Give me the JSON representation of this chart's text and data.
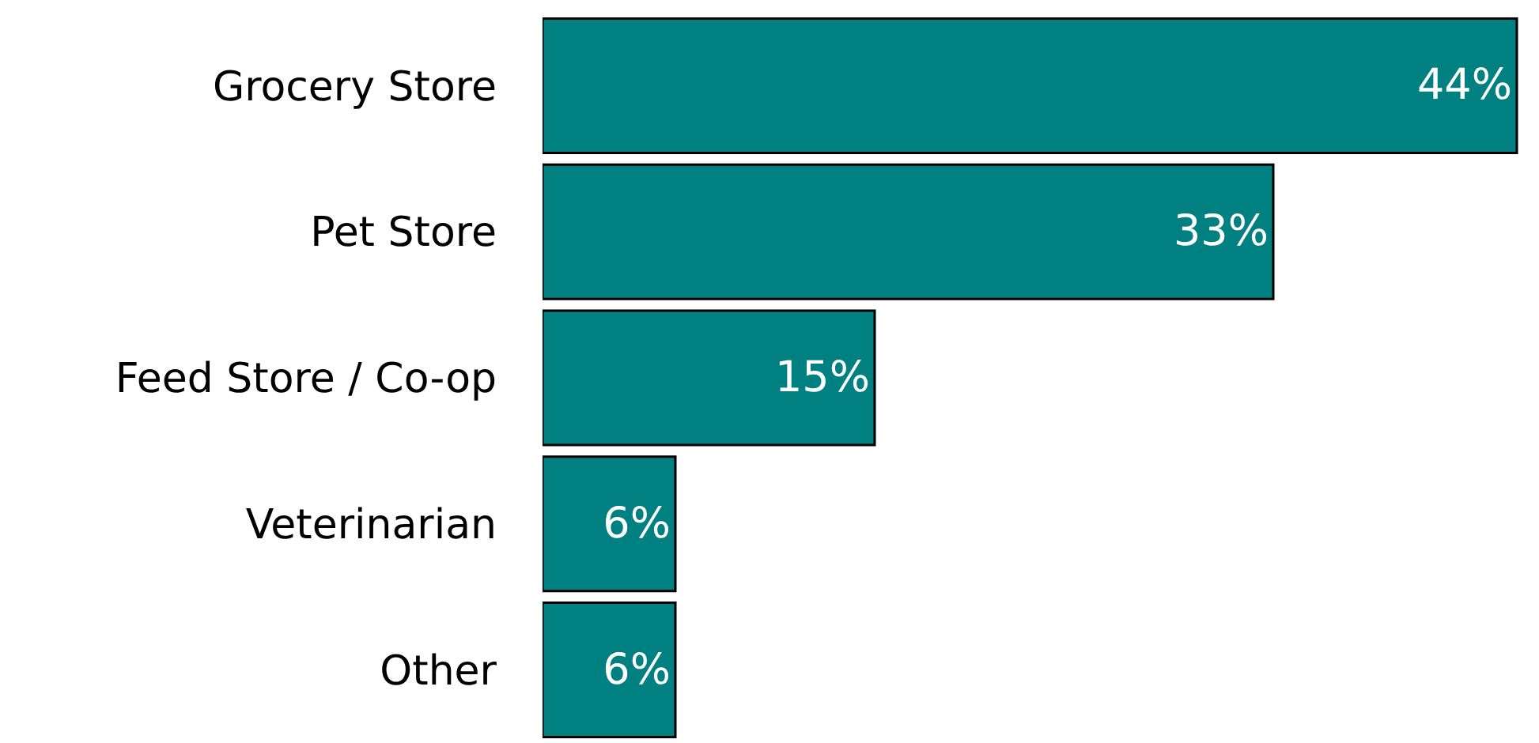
{
  "chart_data": {
    "type": "bar",
    "orientation": "horizontal",
    "categories": [
      "Grocery Store",
      "Pet Store",
      "Feed Store / Co-op",
      "Veterinarian",
      "Other"
    ],
    "values": [
      44,
      33,
      15,
      6,
      6
    ],
    "value_labels": [
      "44%",
      "33%",
      "15%",
      "6%",
      "6%"
    ],
    "color": "#008080",
    "xlim": [
      0,
      45
    ],
    "tick_labels": "y"
  }
}
